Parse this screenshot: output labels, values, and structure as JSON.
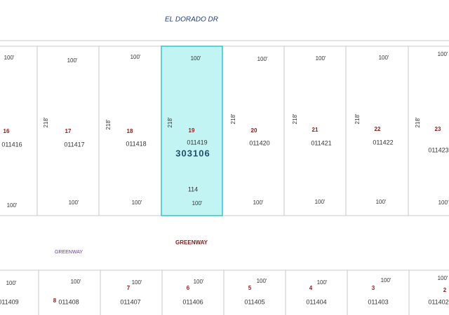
{
  "streets": {
    "north": "EL DORADO DR",
    "south": "GREENWAY",
    "south_small": "GREENWAY"
  },
  "top_lots": [
    {
      "number": "16",
      "parcel": "011416",
      "front": "100'",
      "rear": "100'"
    },
    {
      "number": "17",
      "parcel": "011417",
      "front": "100'",
      "rear": "100'",
      "depth": "218'"
    },
    {
      "number": "18",
      "parcel": "011418",
      "front": "100'",
      "rear": "100'",
      "depth": "218'"
    },
    {
      "number": "19",
      "parcel": "011419",
      "front": "100'",
      "rear": "100'",
      "depth": "218'",
      "account": "303106",
      "code": "114"
    },
    {
      "number": "20",
      "parcel": "011420",
      "front": "100'",
      "rear": "100'",
      "depth": "218'"
    },
    {
      "number": "21",
      "parcel": "011421",
      "front": "100'",
      "rear": "100'",
      "depth": "218'"
    },
    {
      "number": "22",
      "parcel": "011422",
      "front": "100'",
      "rear": "100'",
      "depth": "218'"
    },
    {
      "number": "23",
      "parcel": "011423",
      "front": "100'",
      "rear": "100'",
      "depth": "218'"
    }
  ],
  "bottom_lots": [
    {
      "parcel": "011409",
      "front": "100'"
    },
    {
      "number": "8",
      "parcel": "011408",
      "front": "100'"
    },
    {
      "number": "7",
      "parcel": "011407",
      "front": "100'"
    },
    {
      "number": "6",
      "parcel": "011406",
      "front": "100'"
    },
    {
      "number": "5",
      "parcel": "011405",
      "front": "100'"
    },
    {
      "number": "4",
      "parcel": "011404",
      "front": "100'"
    },
    {
      "number": "3",
      "parcel": "011403",
      "front": "100'"
    },
    {
      "number": "2",
      "parcel": "011402",
      "front": "100'"
    }
  ]
}
